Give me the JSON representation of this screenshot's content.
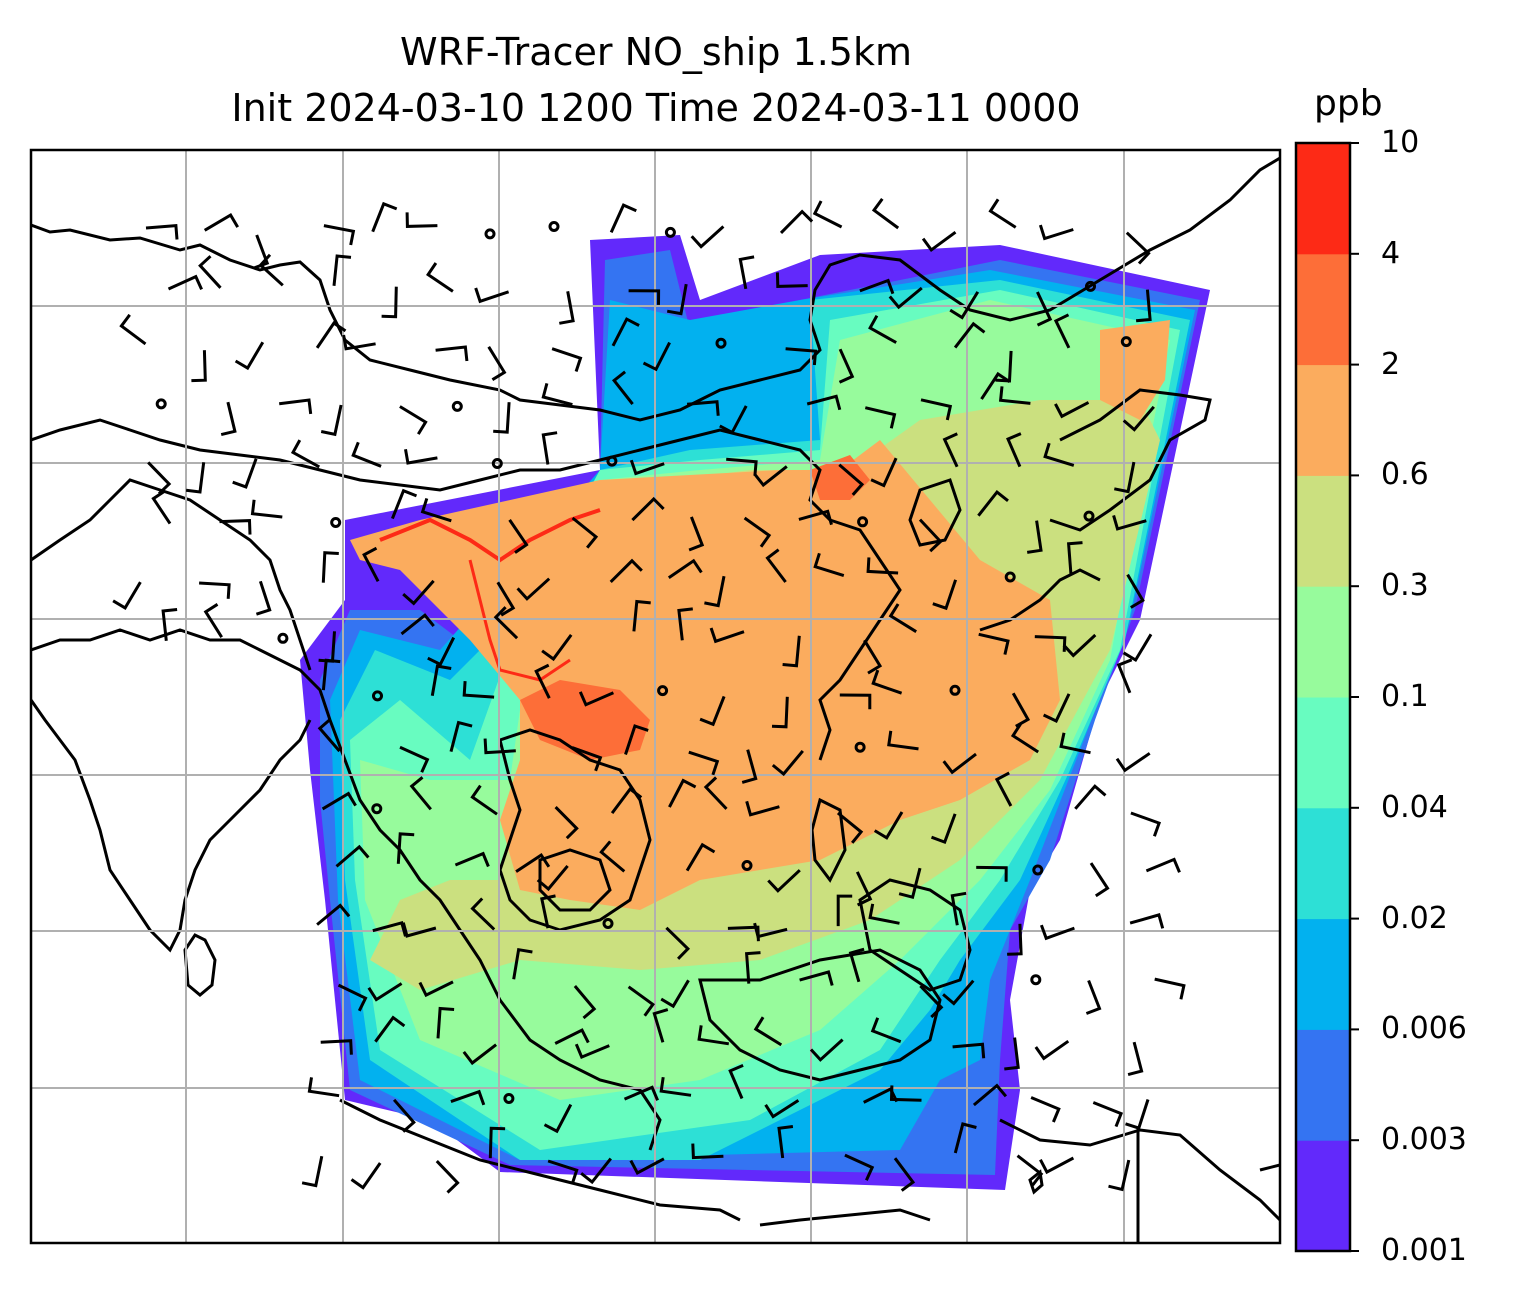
{
  "title": {
    "line1": "WRF-Tracer NO_ship 1.5km",
    "line2": "Init 2024-03-10 1200 Time 2024-03-11 0000"
  },
  "colorbar": {
    "unit": "ppb",
    "levels": [
      "0.001",
      "0.003",
      "0.006",
      "0.02",
      "0.04",
      "0.1",
      "0.3",
      "0.6",
      "2",
      "4",
      "10"
    ],
    "colors": [
      "#6229fb",
      "#3474f2",
      "#02b1ef",
      "#2de0d6",
      "#68fcc0",
      "#97fb9c",
      "#cbe07f",
      "#fbac5e",
      "#fd6e38",
      "#fd2a16"
    ]
  },
  "map": {
    "background": "#ffffff",
    "frame_color": "#000000",
    "gridline_color": "#b0b0b0",
    "coast_color": "#000000",
    "barb_color": "#000000"
  }
}
